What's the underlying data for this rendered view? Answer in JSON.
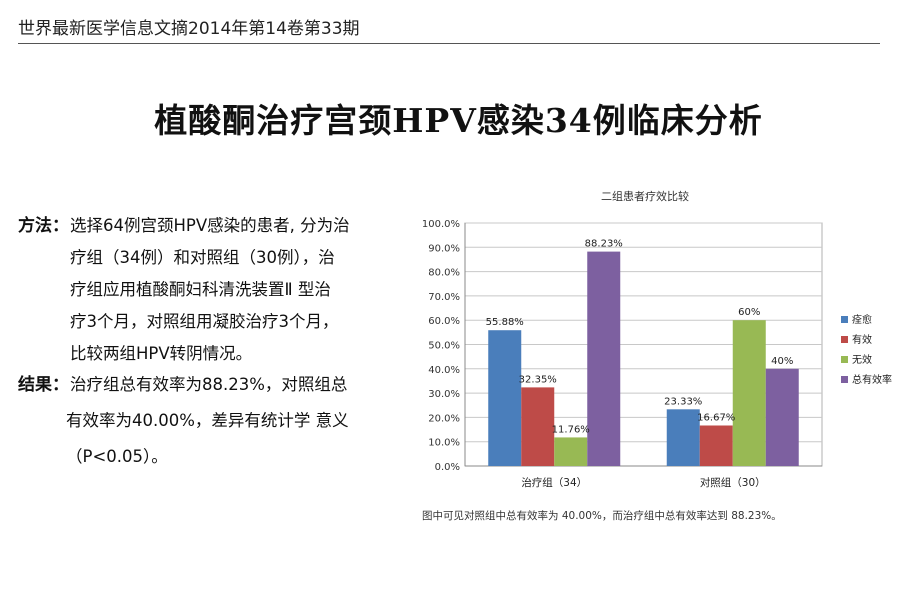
{
  "header": {
    "text": "世界最新医学信息文摘2014年第14卷第33期"
  },
  "title": "植酸酮治疗宫颈HPV感染34例临床分析",
  "methods": {
    "label": "方法：",
    "lines": [
      "选择64例宫颈HPV感染的患者, 分为治",
      "疗组（34例）和对照组（30例），治",
      "疗组应用植酸酮妇科清洗装置Ⅱ 型治",
      "疗3个月，对照组用凝胶治疗3个月，",
      "比较两组HPV转阴情况。"
    ]
  },
  "results": {
    "label": "结果：",
    "lines": [
      "治疗组总有效率为88.23%，对照组总",
      "有效率为40.00%，差异有统计学 意义",
      "（P<0.05）。"
    ]
  },
  "chart_data": {
    "type": "bar",
    "title": "二组患者疗效比较",
    "categories": [
      "治疗组（34）",
      "对照组（30）"
    ],
    "series": [
      {
        "name": "痊愈",
        "color": "#4a7ebb",
        "values": [
          55.88,
          23.33
        ],
        "labels": [
          "55.88%",
          "23.33%"
        ]
      },
      {
        "name": "有效",
        "color": "#be4b48",
        "values": [
          32.35,
          16.67
        ],
        "labels": [
          "32.35%",
          "16.67%"
        ]
      },
      {
        "name": "无效",
        "color": "#98b954",
        "values": [
          11.76,
          60
        ],
        "labels": [
          "11.76%",
          "60%"
        ]
      },
      {
        "name": "总有效率",
        "color": "#7d60a0",
        "values": [
          88.23,
          40
        ],
        "labels": [
          "88.23%",
          "40%"
        ]
      }
    ],
    "y_ticks": [
      "0.0%",
      "10.0%",
      "20.0%",
      "30.0%",
      "40.0%",
      "50.0%",
      "60.0%",
      "70.0%",
      "80.0%",
      "90.0%",
      "100.0%"
    ],
    "ylim": [
      0,
      100
    ],
    "grid": true,
    "legend": "right"
  },
  "note": "图中可见对照组中总有效率为 40.00%，而治疗组中总有效率达到 88.23%。"
}
